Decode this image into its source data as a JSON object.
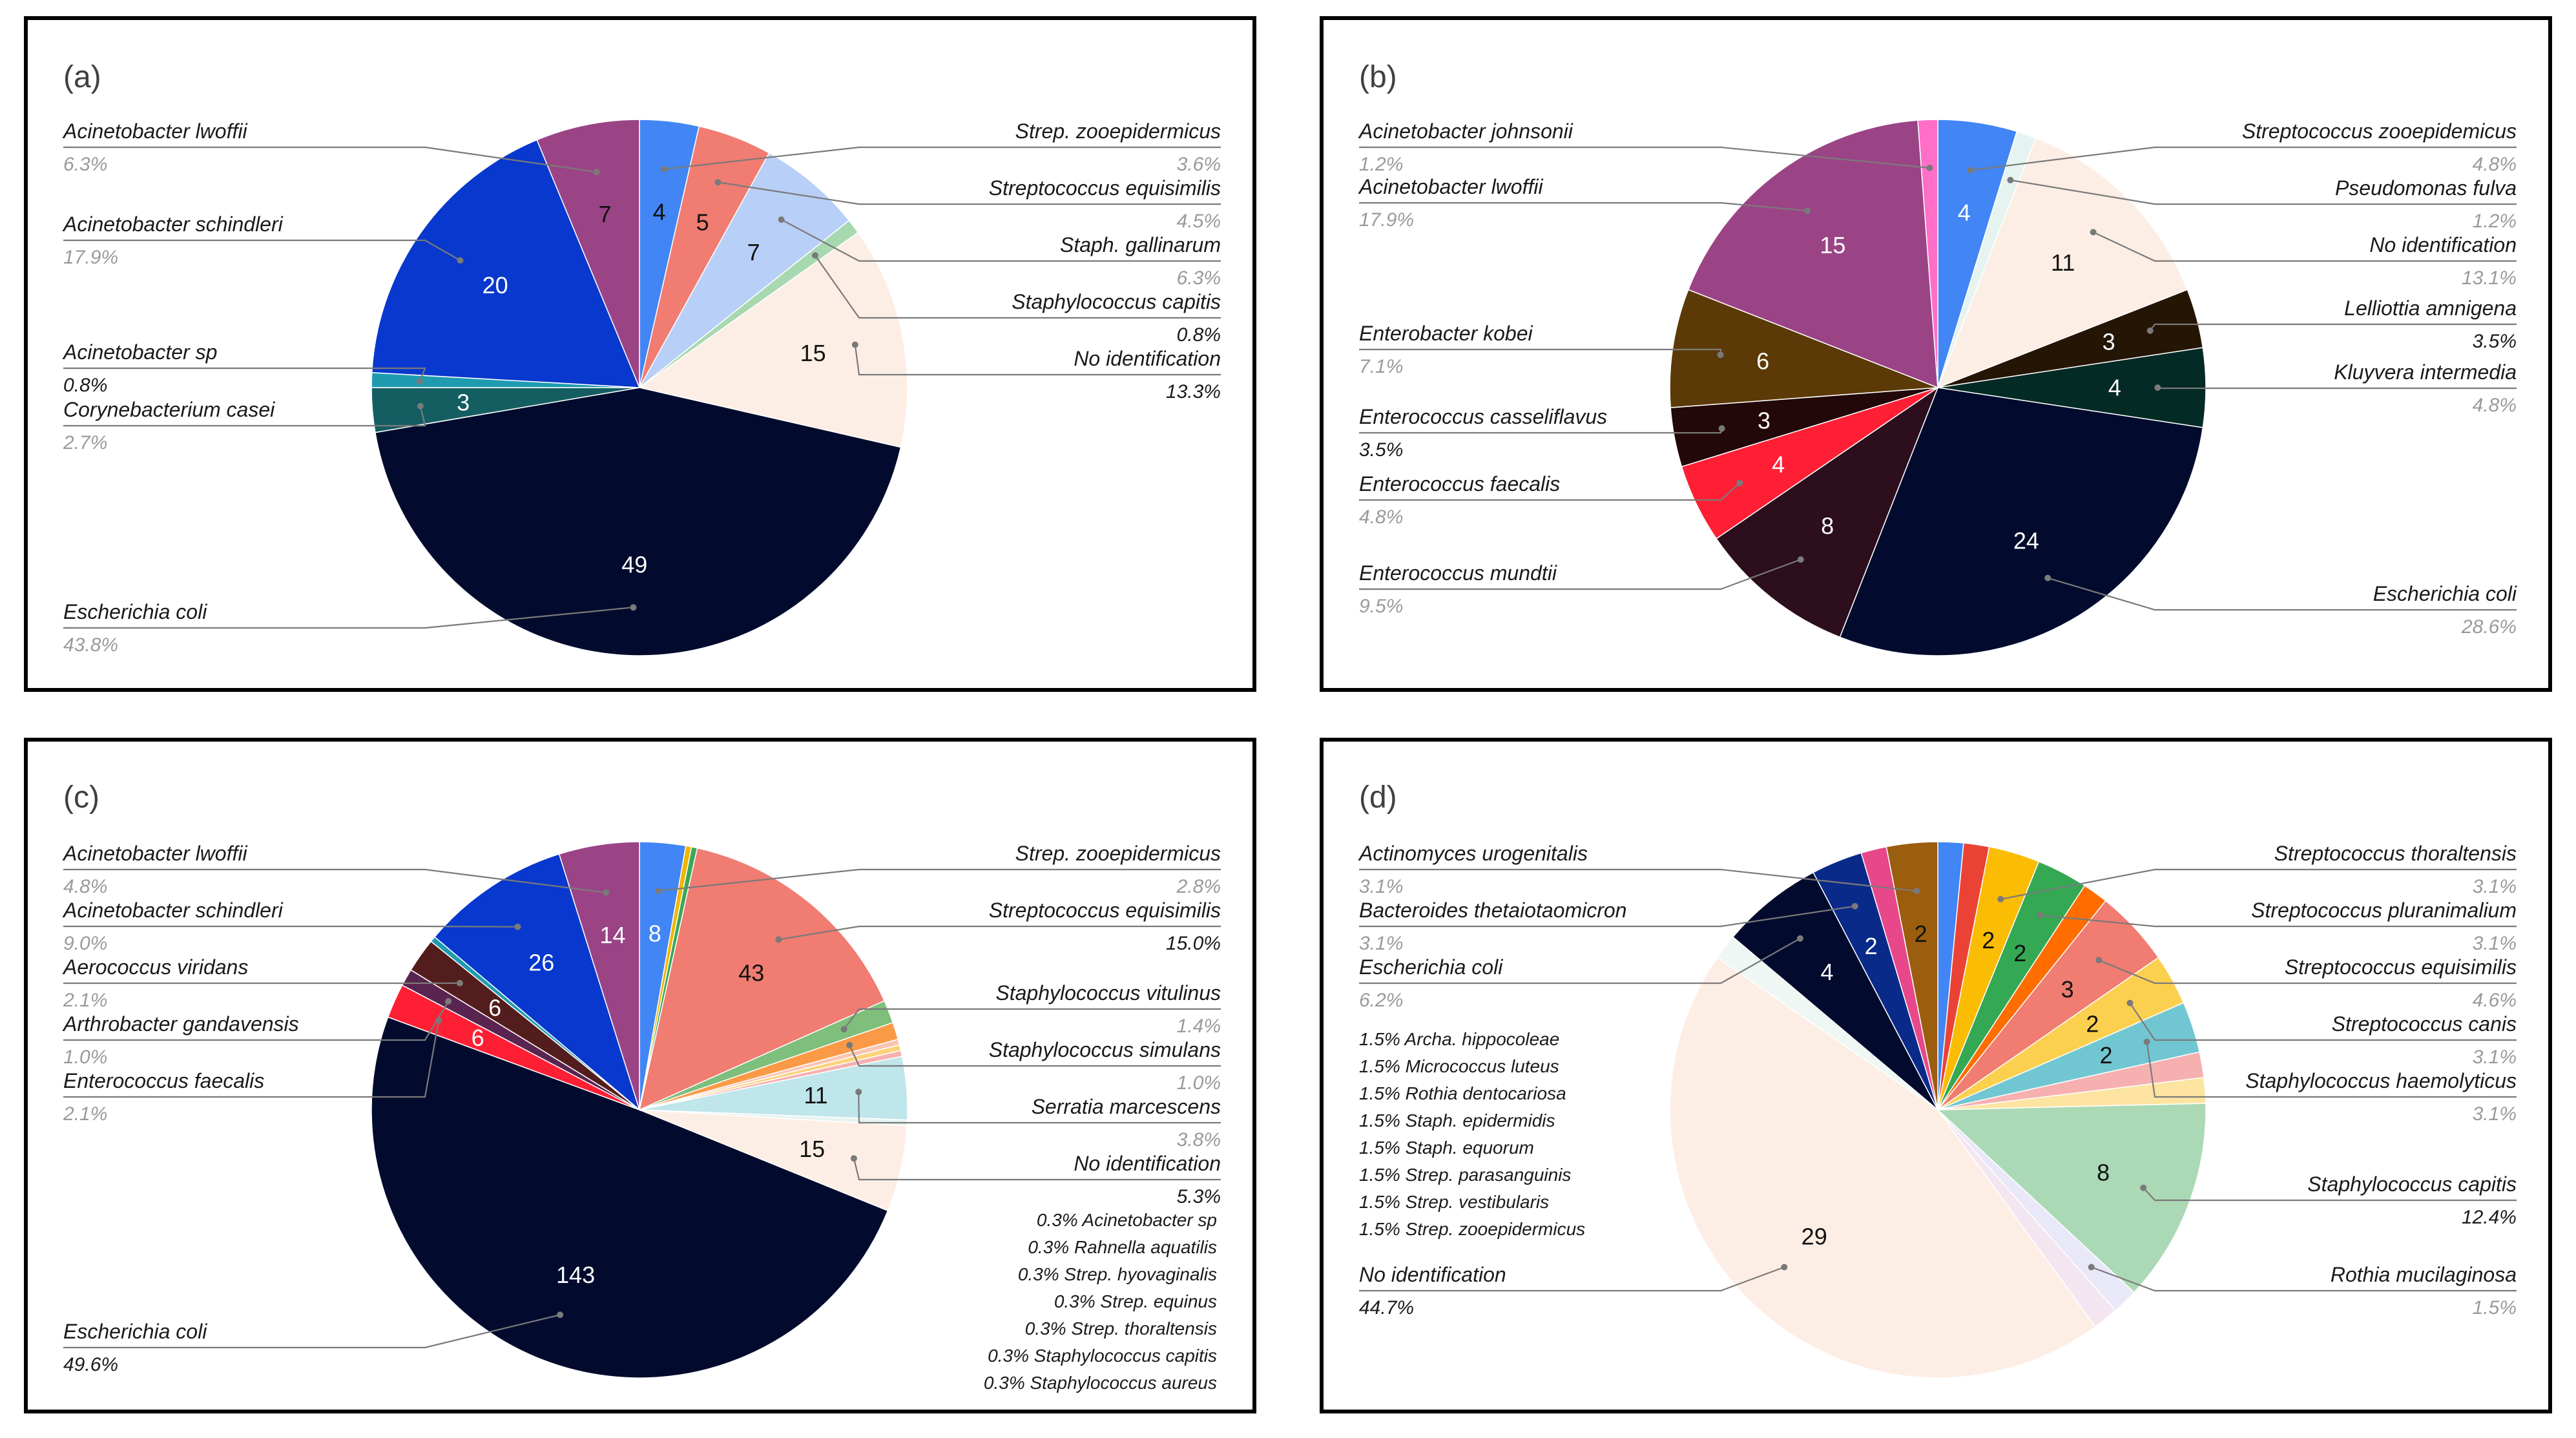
{
  "chart_data": [
    {
      "type": "pie",
      "panel": "(a)",
      "slices": [
        {
          "name": "Strep. zooepidermicus",
          "value": 4,
          "pct": "3.6%",
          "color": "#4285f4",
          "label_color": "#111111",
          "pct_dark": false
        },
        {
          "name": "Streptococcus equisimilis",
          "value": 5,
          "pct": "4.5%",
          "color": "#f07c72",
          "label_color": "#111111",
          "pct_dark": false
        },
        {
          "name": "Staph. gallinarum",
          "value": 7,
          "pct": "6.3%",
          "color": "#b8cff7",
          "label_color": "#111111",
          "pct_dark": false
        },
        {
          "name": "Staphylococcus capitis",
          "value": 1,
          "pct": "0.8%",
          "color": "#a8d8b0",
          "label_color": "#111111",
          "pct_dark": true
        },
        {
          "name": "No identification",
          "value": 15,
          "pct": "13.3%",
          "color": "#fdeee5",
          "label_color": "#111111",
          "pct_dark": true
        },
        {
          "name": "Escherichia coli",
          "value": 49,
          "pct": "43.8%",
          "color": "#020b2e",
          "label_color": "#ffffff",
          "pct_dark": false
        },
        {
          "name": "Corynebacterium casei",
          "value": 3,
          "pct": "2.7%",
          "color": "#145e62",
          "label_color": "#ffffff",
          "pct_dark": false
        },
        {
          "name": "Acinetobacter sp",
          "value": 1,
          "pct": "0.8%",
          "color": "#1f9bb0",
          "label_color": "#ffffff",
          "pct_dark": true
        },
        {
          "name": "Acinetobacter schindleri",
          "value": 20,
          "pct": "17.9%",
          "color": "#0838cd",
          "label_color": "#ffffff",
          "pct_dark": false
        },
        {
          "name": "Acinetobacter lwoffii",
          "value": 7,
          "pct": "6.3%",
          "color": "#9a4486",
          "label_color": "#111111",
          "pct_dark": false
        }
      ]
    },
    {
      "type": "pie",
      "panel": "(b)",
      "slices": [
        {
          "name": "Streptococcus zooepidemicus",
          "value": 4,
          "pct": "4.8%",
          "color": "#4285f4",
          "label_color": "#ffffff",
          "pct_dark": false
        },
        {
          "name": "Pseudomonas fulva",
          "value": 1,
          "pct": "1.2%",
          "color": "#e6f4f1",
          "label_color": "#111111",
          "pct_dark": false
        },
        {
          "name": "No identification",
          "value": 11,
          "pct": "13.1%",
          "color": "#fdeee5",
          "label_color": "#111111",
          "pct_dark": false
        },
        {
          "name": "Lelliottia amnigena",
          "value": 3,
          "pct": "3.5%",
          "color": "#241505",
          "label_color": "#ffffff",
          "pct_dark": true
        },
        {
          "name": "Kluyvera intermedia",
          "value": 4,
          "pct": "4.8%",
          "color": "#032a24",
          "label_color": "#ffffff",
          "pct_dark": false
        },
        {
          "name": "Escherichia coli",
          "value": 24,
          "pct": "28.6%",
          "color": "#020b2e",
          "label_color": "#ffffff",
          "pct_dark": false
        },
        {
          "name": "Enterococcus mundtii",
          "value": 8,
          "pct": "9.5%",
          "color": "#2c0e1d",
          "label_color": "#ffffff",
          "pct_dark": false
        },
        {
          "name": "Enterococcus faecalis",
          "value": 4,
          "pct": "4.8%",
          "color": "#ff1f35",
          "label_color": "#ffffff",
          "pct_dark": false
        },
        {
          "name": "Enterococcus casseliflavus",
          "value": 3,
          "pct": "3.5%",
          "color": "#220808",
          "label_color": "#ffffff",
          "pct_dark": true
        },
        {
          "name": "Enterobacter kobei",
          "value": 6,
          "pct": "7.1%",
          "color": "#5c3a07",
          "label_color": "#ffffff",
          "pct_dark": false
        },
        {
          "name": "Acinetobacter lwoffii",
          "value": 15,
          "pct": "17.9%",
          "color": "#9a4486",
          "label_color": "#ffffff",
          "pct_dark": false
        },
        {
          "name": "Acinetobacter johnsonii",
          "value": 1,
          "pct": "1.2%",
          "color": "#ff6ec7",
          "label_color": "#111111",
          "pct_dark": false
        }
      ]
    },
    {
      "type": "pie",
      "panel": "(c)",
      "slices": [
        {
          "name": "Strep. zooepidermicus",
          "value": 8,
          "pct": "2.8%",
          "color": "#4285f4",
          "label_color": "#ffffff",
          "pct_dark": false
        },
        {
          "name": "Staphylococcus aureus",
          "value": 1,
          "pct": "0.3%",
          "color": "#f2b500",
          "label_color": "#111111",
          "minor": true
        },
        {
          "name": "Staphylococcus capitis",
          "value": 1,
          "pct": "0.3%",
          "color": "#3aa757",
          "label_color": "#111111",
          "minor": true
        },
        {
          "name": "Streptococcus equisimilis",
          "value": 43,
          "pct": "15.0%",
          "color": "#f07c72",
          "label_color": "#111111",
          "pct_dark": true
        },
        {
          "name": "Staphylococcus vitulinus",
          "value": 4,
          "pct": "1.4%",
          "color": "#7dbf7b",
          "label_color": "#111111",
          "pct_dark": false
        },
        {
          "name": "Staphylococcus simulans",
          "value": 3,
          "pct": "1.0%",
          "color": "#fb9a46",
          "label_color": "#111111",
          "pct_dark": false
        },
        {
          "name": "Strep. thoraltensis",
          "value": 1,
          "pct": "0.3%",
          "color": "#f9c5b4",
          "label_color": "#111111",
          "minor": true
        },
        {
          "name": "Strep. equinus",
          "value": 1,
          "pct": "0.3%",
          "color": "#fbd37a",
          "label_color": "#111111",
          "minor": true
        },
        {
          "name": "Strep. hyovaginalis",
          "value": 1,
          "pct": "0.3%",
          "color": "#f6b0b0",
          "label_color": "#111111",
          "minor": true
        },
        {
          "name": "Serratia marcescens",
          "value": 11,
          "pct": "3.8%",
          "color": "#bfe6ea",
          "label_color": "#111111",
          "pct_dark": false
        },
        {
          "name": "Rahnella aquatilis",
          "value": 1,
          "pct": "0.3%",
          "color": "#e6f4f1",
          "label_color": "#111111",
          "minor": true
        },
        {
          "name": "No identification",
          "value": 15,
          "pct": "5.3%",
          "color": "#fdeee5",
          "label_color": "#111111",
          "pct_dark": true
        },
        {
          "name": "Escherichia coli",
          "value": 143,
          "pct": "49.6%",
          "color": "#020b2e",
          "label_color": "#ffffff",
          "pct_dark": true
        },
        {
          "name": "Enterococcus faecalis",
          "value": 6,
          "pct": "2.1%",
          "color": "#ff1f35",
          "label_color": "#ffffff",
          "pct_dark": false
        },
        {
          "name": "Arthrobacter gandavensis",
          "value": 3,
          "pct": "1.0%",
          "color": "#5a2450",
          "label_color": "#ffffff",
          "pct_dark": false
        },
        {
          "name": "Aerococcus viridans",
          "value": 6,
          "pct": "2.1%",
          "color": "#541d1d",
          "label_color": "#ffffff",
          "pct_dark": false
        },
        {
          "name": "Acinetobacter sp",
          "value": 1,
          "pct": "0.3%",
          "color": "#1f9bb0",
          "label_color": "#ffffff",
          "minor": true
        },
        {
          "name": "Acinetobacter schindleri",
          "value": 26,
          "pct": "9.0%",
          "color": "#0838cd",
          "label_color": "#ffffff",
          "pct_dark": false
        },
        {
          "name": "Acinetobacter lwoffii",
          "value": 14,
          "pct": "4.8%",
          "color": "#9a4486",
          "label_color": "#ffffff",
          "pct_dark": false
        }
      ],
      "minor_list": [
        "0.3% Acinetobacter sp",
        "0.3% Rahnella aquatilis",
        "0.3% Strep. hyovaginalis",
        "0.3% Strep. equinus",
        "0.3% Strep. thoraltensis",
        "0.3% Staphylococcus capitis",
        "0.3% Staphylococcus aureus"
      ]
    },
    {
      "type": "pie",
      "panel": "(d)",
      "slices": [
        {
          "name": "Strep. zooepidermicus",
          "value": 1,
          "pct": "1.5%",
          "color": "#4285f4",
          "label_color": "#111111",
          "minor": true
        },
        {
          "name": "Strep. vestibularis",
          "value": 1,
          "pct": "1.5%",
          "color": "#ea4335",
          "label_color": "#111111",
          "minor": true
        },
        {
          "name": "Streptococcus thoraltensis",
          "value": 2,
          "pct": "3.1%",
          "color": "#fbbc04",
          "label_color": "#111111",
          "pct_dark": false
        },
        {
          "name": "Streptococcus pluranimalium",
          "value": 2,
          "pct": "3.1%",
          "color": "#34a853",
          "label_color": "#111111",
          "pct_dark": false
        },
        {
          "name": "Strep. parasanguinis",
          "value": 1,
          "pct": "1.5%",
          "color": "#ff6d01",
          "label_color": "#111111",
          "minor": true
        },
        {
          "name": "Streptococcus equisimilis",
          "value": 3,
          "pct": "4.6%",
          "color": "#f07c72",
          "label_color": "#111111",
          "pct_dark": false
        },
        {
          "name": "Streptococcus canis",
          "value": 2,
          "pct": "3.1%",
          "color": "#fcd04f",
          "label_color": "#111111",
          "pct_dark": false
        },
        {
          "name": "Staphylococcus haemolyticus",
          "value": 2,
          "pct": "3.1%",
          "color": "#71c7d1",
          "label_color": "#111111",
          "pct_dark": false
        },
        {
          "name": "Staph. equorum",
          "value": 1,
          "pct": "1.5%",
          "color": "#f6b0b0",
          "label_color": "#111111",
          "minor": true
        },
        {
          "name": "Staph. epidermidis",
          "value": 1,
          "pct": "1.5%",
          "color": "#fde4a0",
          "label_color": "#111111",
          "minor": true
        },
        {
          "name": "Staphylococcus capitis",
          "value": 8,
          "pct": "12.4%",
          "color": "#abd9b6",
          "label_color": "#111111",
          "pct_dark": true
        },
        {
          "name": "Rothia mucilaginosa",
          "value": 1,
          "pct": "1.5%",
          "color": "#e8e8f8",
          "label_color": "#111111",
          "pct_dark": false
        },
        {
          "name": "Rothia dentocariosa",
          "value": 1,
          "pct": "1.5%",
          "color": "#f3e6f1",
          "label_color": "#111111",
          "minor": true
        },
        {
          "name": "No identification",
          "value": 29,
          "pct": "44.7%",
          "color": "#fdeee5",
          "label_color": "#111111",
          "pct_dark": true
        },
        {
          "name": "Micrococcus luteus",
          "value": 1,
          "pct": "1.5%",
          "color": "#eef7f4",
          "label_color": "#111111",
          "minor": true
        },
        {
          "name": "Escherichia coli",
          "value": 4,
          "pct": "6.2%",
          "color": "#020b2e",
          "label_color": "#ffffff",
          "pct_dark": false
        },
        {
          "name": "Bacteroides thetaiotaomicron",
          "value": 2,
          "pct": "3.1%",
          "color": "#0a2a8a",
          "label_color": "#ffffff",
          "pct_dark": false
        },
        {
          "name": "Archa. hippocoleae",
          "value": 1,
          "pct": "1.5%",
          "color": "#e8488a",
          "label_color": "#111111",
          "minor": true
        },
        {
          "name": "Actinomyces urogenitalis",
          "value": 2,
          "pct": "3.1%",
          "color": "#9b5d0e",
          "label_color": "#111111",
          "pct_dark": false
        }
      ],
      "minor_list": [
        "1.5% Archa. hippocoleae",
        "1.5% Micrococcus luteus",
        "1.5% Rothia dentocariosa",
        "1.5% Staph. epidermidis",
        "1.5% Staph. equorum",
        "1.5% Strep. parasanguinis",
        "1.5% Strep. vestibularis",
        "1.5% Strep.  zooepidermicus"
      ]
    }
  ]
}
